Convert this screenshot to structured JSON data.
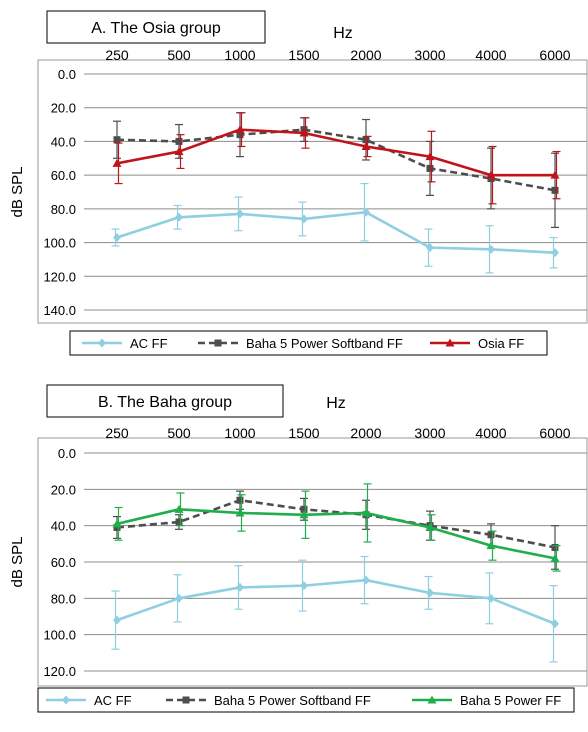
{
  "chart_data": [
    {
      "type": "line",
      "title": "A. The Osia group",
      "xlabel": "Hz",
      "ylabel": "dB SPL",
      "categories": [
        "250",
        "500",
        "1000",
        "1500",
        "2000",
        "3000",
        "4000",
        "6000"
      ],
      "y_ticks": [
        "0.0",
        "20.0",
        "40.0",
        "60.0",
        "80.0",
        "100.0",
        "120.0",
        "140.0"
      ],
      "ylim": [
        0,
        140
      ],
      "y_inverted": true,
      "grid": "horizontal",
      "legend_position": "bottom",
      "series": [
        {
          "name": "AC FF",
          "color": "#8ecfe0",
          "marker": "diamond",
          "dash": "solid",
          "values": [
            97,
            85,
            83,
            86,
            82,
            103,
            104,
            106
          ],
          "errors": [
            5,
            7,
            10,
            10,
            17,
            11,
            14,
            9
          ]
        },
        {
          "name": "Baha 5 Power Softband FF",
          "color": "#4d4d4d",
          "marker": "square",
          "dash": "dashed",
          "values": [
            39,
            40,
            36,
            33,
            39,
            56,
            62,
            69
          ],
          "errors": [
            11,
            10,
            13,
            7,
            12,
            16,
            18,
            22
          ]
        },
        {
          "name": "Osia FF",
          "color": "#c0141b",
          "marker": "triangle",
          "dash": "solid",
          "values": [
            53,
            46,
            33,
            35,
            43,
            49,
            60,
            60
          ],
          "errors": [
            12,
            10,
            10,
            9,
            6,
            15,
            17,
            14
          ]
        }
      ]
    },
    {
      "type": "line",
      "title": "B. The Baha group",
      "xlabel": "Hz",
      "ylabel": "dB SPL",
      "categories": [
        "250",
        "500",
        "1000",
        "1500",
        "2000",
        "3000",
        "4000",
        "6000"
      ],
      "y_ticks": [
        "0.0",
        "20.0",
        "40.0",
        "60.0",
        "80.0",
        "100.0",
        "120.0"
      ],
      "ylim": [
        0,
        120
      ],
      "y_inverted": true,
      "grid": "horizontal",
      "legend_position": "bottom",
      "series": [
        {
          "name": "AC  FF",
          "color": "#8ecfe0",
          "marker": "diamond",
          "dash": "solid",
          "values": [
            92,
            80,
            74,
            73,
            70,
            77,
            80,
            94
          ],
          "errors": [
            16,
            13,
            12,
            14,
            13,
            9,
            14,
            21
          ]
        },
        {
          "name": "Baha 5 Power Softband FF",
          "color": "#4d4d4d",
          "marker": "square",
          "dash": "dashed",
          "values": [
            41,
            38,
            26,
            31,
            34,
            40,
            45,
            52
          ],
          "errors": [
            6,
            4,
            5,
            6,
            8,
            8,
            6,
            12
          ]
        },
        {
          "name": "Baha 5 Power FF",
          "color": "#1fae4b",
          "marker": "triangle",
          "dash": "solid",
          "values": [
            39,
            31,
            33,
            34,
            33,
            41,
            51,
            58
          ],
          "errors": [
            9,
            9,
            10,
            13,
            16,
            7,
            8,
            7
          ]
        }
      ]
    }
  ]
}
